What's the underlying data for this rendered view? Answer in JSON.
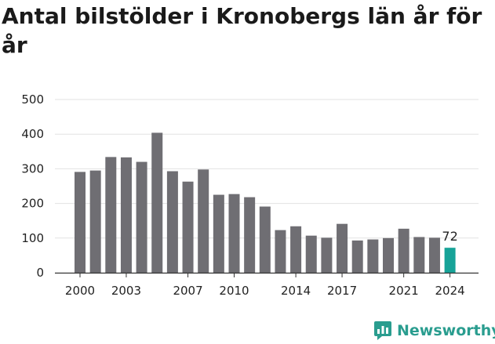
{
  "chart_data": {
    "type": "bar",
    "title": "Antal bilstölder i Kronobergs län år för år",
    "categories": [
      "2000",
      "2001",
      "2002",
      "2003",
      "2004",
      "2005",
      "2006",
      "2007",
      "2008",
      "2009",
      "2010",
      "2011",
      "2012",
      "2013",
      "2014",
      "2015",
      "2016",
      "2017",
      "2018",
      "2019",
      "2020",
      "2021",
      "2022",
      "2023",
      "2024"
    ],
    "values": [
      291,
      295,
      334,
      333,
      320,
      404,
      293,
      263,
      298,
      225,
      227,
      218,
      191,
      123,
      134,
      107,
      101,
      141,
      93,
      96,
      100,
      127,
      103,
      101,
      72
    ],
    "x_tick_labels": [
      "2000",
      "2003",
      "2007",
      "2010",
      "2014",
      "2017",
      "2021",
      "2024"
    ],
    "y_ticks": [
      0,
      100,
      200,
      300,
      400,
      500
    ],
    "ylim": [
      0,
      500
    ],
    "grid": true,
    "data_labels": [
      {
        "category": "2024",
        "text": "72"
      }
    ],
    "colors": {
      "bar": "#6f6e73",
      "highlight": "#17a398",
      "grid": "#e2e2e2"
    },
    "highlight_category": "2024"
  },
  "brand": {
    "name": "Newsworthy",
    "icon": "newsworthy-chart-bubble-icon",
    "color": "#2a9d8f"
  }
}
